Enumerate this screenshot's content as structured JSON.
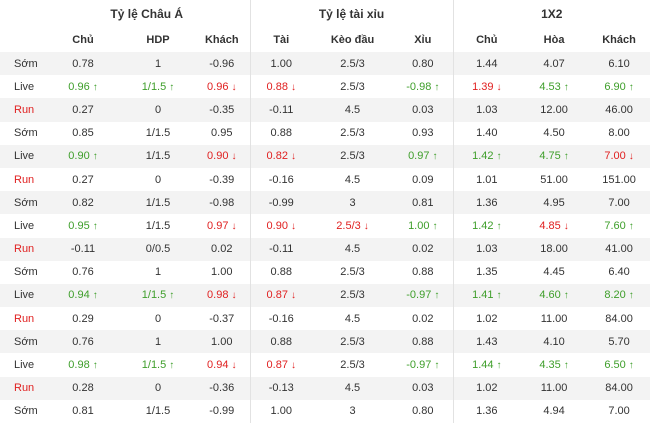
{
  "headers": {
    "groups": [
      "Tỷ lệ Châu Á",
      "Tỷ lệ tài xỉu",
      "1X2"
    ],
    "columns": [
      "Chủ",
      "HDP",
      "Khách",
      "Tài",
      "Kèo đầu",
      "Xỉu",
      "Chủ",
      "Hòa",
      "Khách"
    ]
  },
  "colors": {
    "up": "#3e9e2a",
    "down": "#e02020",
    "run_label": "#e02020",
    "stripe": "#f3f3f3"
  },
  "rows": [
    {
      "label": "Sớm",
      "cells": [
        {
          "v": "0.78"
        },
        {
          "v": "1"
        },
        {
          "v": "-0.96"
        },
        {
          "v": "1.00"
        },
        {
          "v": "2.5/3"
        },
        {
          "v": "0.80"
        },
        {
          "v": "1.44"
        },
        {
          "v": "4.07"
        },
        {
          "v": "6.10"
        }
      ]
    },
    {
      "label": "Live",
      "cells": [
        {
          "v": "0.96",
          "d": "up"
        },
        {
          "v": "1/1.5",
          "d": "up"
        },
        {
          "v": "0.96",
          "d": "down"
        },
        {
          "v": "0.88",
          "d": "down"
        },
        {
          "v": "2.5/3"
        },
        {
          "v": "-0.98",
          "d": "up"
        },
        {
          "v": "1.39",
          "d": "down"
        },
        {
          "v": "4.53",
          "d": "up"
        },
        {
          "v": "6.90",
          "d": "up"
        }
      ]
    },
    {
      "label": "Run",
      "cells": [
        {
          "v": "0.27"
        },
        {
          "v": "0"
        },
        {
          "v": "-0.35"
        },
        {
          "v": "-0.11"
        },
        {
          "v": "4.5"
        },
        {
          "v": "0.03"
        },
        {
          "v": "1.03"
        },
        {
          "v": "12.00"
        },
        {
          "v": "46.00"
        }
      ]
    },
    {
      "label": "Sớm",
      "cells": [
        {
          "v": "0.85"
        },
        {
          "v": "1/1.5"
        },
        {
          "v": "0.95"
        },
        {
          "v": "0.88"
        },
        {
          "v": "2.5/3"
        },
        {
          "v": "0.93"
        },
        {
          "v": "1.40"
        },
        {
          "v": "4.50"
        },
        {
          "v": "8.00"
        }
      ]
    },
    {
      "label": "Live",
      "cells": [
        {
          "v": "0.90",
          "d": "up"
        },
        {
          "v": "1/1.5"
        },
        {
          "v": "0.90",
          "d": "down"
        },
        {
          "v": "0.82",
          "d": "down"
        },
        {
          "v": "2.5/3"
        },
        {
          "v": "0.97",
          "d": "up"
        },
        {
          "v": "1.42",
          "d": "up"
        },
        {
          "v": "4.75",
          "d": "up"
        },
        {
          "v": "7.00",
          "d": "down"
        }
      ]
    },
    {
      "label": "Run",
      "cells": [
        {
          "v": "0.27"
        },
        {
          "v": "0"
        },
        {
          "v": "-0.39"
        },
        {
          "v": "-0.16"
        },
        {
          "v": "4.5"
        },
        {
          "v": "0.09"
        },
        {
          "v": "1.01"
        },
        {
          "v": "51.00"
        },
        {
          "v": "151.00"
        }
      ]
    },
    {
      "label": "Sớm",
      "cells": [
        {
          "v": "0.82"
        },
        {
          "v": "1/1.5"
        },
        {
          "v": "-0.98"
        },
        {
          "v": "-0.99"
        },
        {
          "v": "3"
        },
        {
          "v": "0.81"
        },
        {
          "v": "1.36"
        },
        {
          "v": "4.95"
        },
        {
          "v": "7.00"
        }
      ]
    },
    {
      "label": "Live",
      "cells": [
        {
          "v": "0.95",
          "d": "up"
        },
        {
          "v": "1/1.5"
        },
        {
          "v": "0.97",
          "d": "down"
        },
        {
          "v": "0.90",
          "d": "down"
        },
        {
          "v": "2.5/3",
          "d": "down"
        },
        {
          "v": "1.00",
          "d": "up"
        },
        {
          "v": "1.42",
          "d": "up"
        },
        {
          "v": "4.85",
          "d": "down"
        },
        {
          "v": "7.60",
          "d": "up"
        }
      ]
    },
    {
      "label": "Run",
      "cells": [
        {
          "v": "-0.11"
        },
        {
          "v": "0/0.5"
        },
        {
          "v": "0.02"
        },
        {
          "v": "-0.11"
        },
        {
          "v": "4.5"
        },
        {
          "v": "0.02"
        },
        {
          "v": "1.03"
        },
        {
          "v": "18.00"
        },
        {
          "v": "41.00"
        }
      ]
    },
    {
      "label": "Sớm",
      "cells": [
        {
          "v": "0.76"
        },
        {
          "v": "1"
        },
        {
          "v": "1.00"
        },
        {
          "v": "0.88"
        },
        {
          "v": "2.5/3"
        },
        {
          "v": "0.88"
        },
        {
          "v": "1.35"
        },
        {
          "v": "4.45"
        },
        {
          "v": "6.40"
        }
      ]
    },
    {
      "label": "Live",
      "cells": [
        {
          "v": "0.94",
          "d": "up"
        },
        {
          "v": "1/1.5",
          "d": "up"
        },
        {
          "v": "0.98",
          "d": "down"
        },
        {
          "v": "0.87",
          "d": "down"
        },
        {
          "v": "2.5/3"
        },
        {
          "v": "-0.97",
          "d": "up"
        },
        {
          "v": "1.41",
          "d": "up"
        },
        {
          "v": "4.60",
          "d": "up"
        },
        {
          "v": "8.20",
          "d": "up"
        }
      ]
    },
    {
      "label": "Run",
      "cells": [
        {
          "v": "0.29"
        },
        {
          "v": "0"
        },
        {
          "v": "-0.37"
        },
        {
          "v": "-0.16"
        },
        {
          "v": "4.5"
        },
        {
          "v": "0.02"
        },
        {
          "v": "1.02"
        },
        {
          "v": "11.00"
        },
        {
          "v": "84.00"
        }
      ]
    },
    {
      "label": "Sớm",
      "cells": [
        {
          "v": "0.76"
        },
        {
          "v": "1"
        },
        {
          "v": "1.00"
        },
        {
          "v": "0.88"
        },
        {
          "v": "2.5/3"
        },
        {
          "v": "0.88"
        },
        {
          "v": "1.43"
        },
        {
          "v": "4.10"
        },
        {
          "v": "5.70"
        }
      ]
    },
    {
      "label": "Live",
      "cells": [
        {
          "v": "0.98",
          "d": "up"
        },
        {
          "v": "1/1.5",
          "d": "up"
        },
        {
          "v": "0.94",
          "d": "down"
        },
        {
          "v": "0.87",
          "d": "down"
        },
        {
          "v": "2.5/3"
        },
        {
          "v": "-0.97",
          "d": "up"
        },
        {
          "v": "1.44",
          "d": "up"
        },
        {
          "v": "4.35",
          "d": "up"
        },
        {
          "v": "6.50",
          "d": "up"
        }
      ]
    },
    {
      "label": "Run",
      "cells": [
        {
          "v": "0.28"
        },
        {
          "v": "0"
        },
        {
          "v": "-0.36"
        },
        {
          "v": "-0.13"
        },
        {
          "v": "4.5"
        },
        {
          "v": "0.03"
        },
        {
          "v": "1.02"
        },
        {
          "v": "11.00"
        },
        {
          "v": "84.00"
        }
      ]
    },
    {
      "label": "Sớm",
      "cells": [
        {
          "v": "0.81"
        },
        {
          "v": "1/1.5"
        },
        {
          "v": "-0.99"
        },
        {
          "v": "1.00"
        },
        {
          "v": "3"
        },
        {
          "v": "0.80"
        },
        {
          "v": "1.36"
        },
        {
          "v": "4.94"
        },
        {
          "v": "7.00"
        }
      ]
    }
  ]
}
